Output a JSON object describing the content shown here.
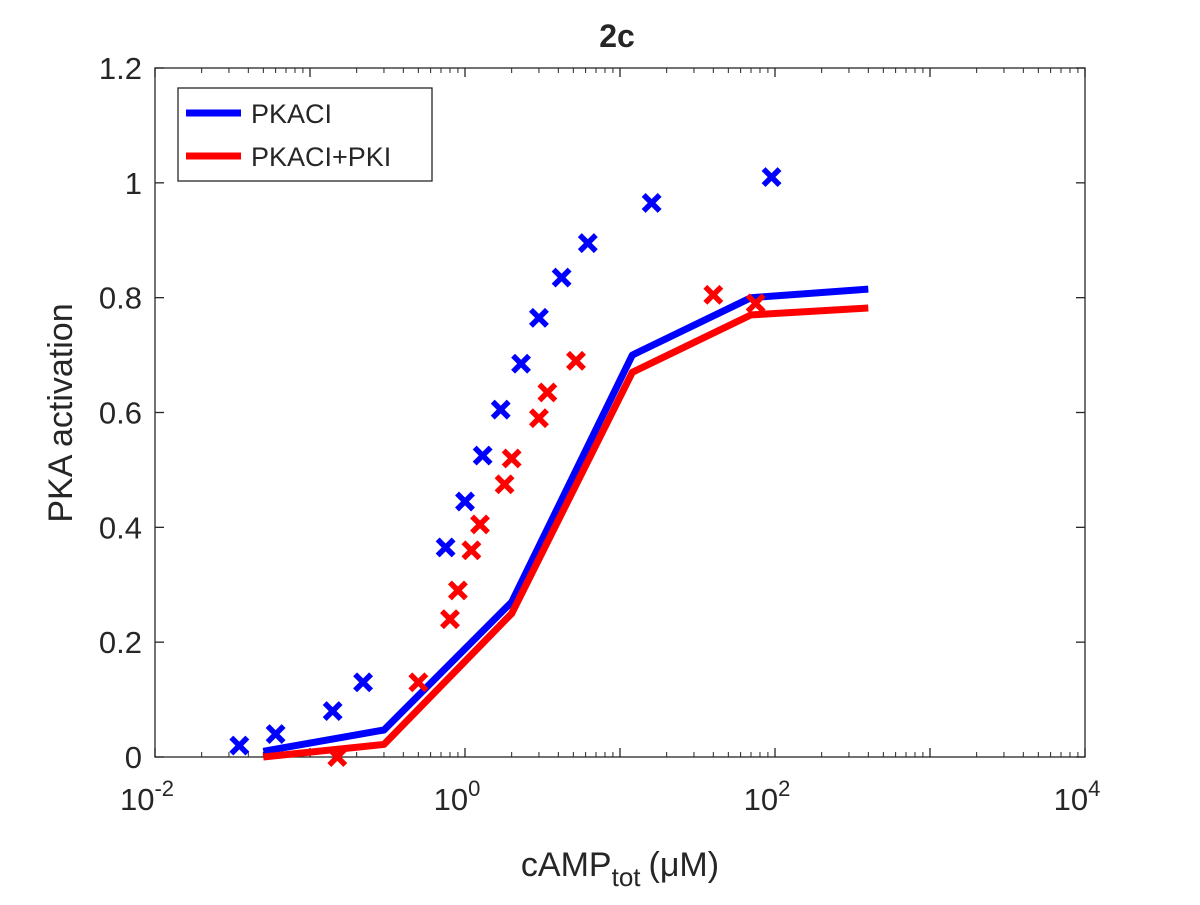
{
  "chart_data": {
    "type": "line",
    "title": "2c",
    "xlabel": {
      "main": "cAMP",
      "sub": "tot",
      "unit": "(μM)"
    },
    "ylabel": "PKA activation",
    "xscale": "log",
    "xlim": [
      0.01,
      10000
    ],
    "ylim": [
      0,
      1.2
    ],
    "x_ticks": [
      {
        "value": 0.01,
        "base": "10",
        "exp": "-2"
      },
      {
        "value": 1,
        "base": "10",
        "exp": "0"
      },
      {
        "value": 100,
        "base": "10",
        "exp": "2"
      },
      {
        "value": 10000,
        "base": "10",
        "exp": "4"
      }
    ],
    "y_ticks": [
      {
        "value": 0,
        "label": "0"
      },
      {
        "value": 0.2,
        "label": "0.2"
      },
      {
        "value": 0.4,
        "label": "0.4"
      },
      {
        "value": 0.6,
        "label": "0.6"
      },
      {
        "value": 0.8,
        "label": "0.8"
      },
      {
        "value": 1.0,
        "label": "1"
      },
      {
        "value": 1.2,
        "label": "1.2"
      }
    ],
    "grid": false,
    "legend_position": "top-left",
    "series": [
      {
        "name": "PKACI",
        "color": "#0000ff",
        "line": {
          "x": [
            0.05,
            0.3,
            2,
            12,
            70,
            400
          ],
          "y": [
            0.01,
            0.047,
            0.27,
            0.7,
            0.8,
            0.815
          ]
        },
        "markers": {
          "x": [
            0.035,
            0.06,
            0.14,
            0.22,
            0.75,
            1.0,
            1.3,
            1.7,
            2.3,
            3.0,
            4.2,
            6.2,
            16,
            95
          ],
          "y": [
            0.02,
            0.04,
            0.08,
            0.13,
            0.365,
            0.445,
            0.525,
            0.605,
            0.685,
            0.765,
            0.835,
            0.895,
            0.965,
            1.01
          ]
        }
      },
      {
        "name": "PKACI+PKI",
        "color": "#ff0000",
        "line": {
          "x": [
            0.05,
            0.3,
            2,
            12,
            70,
            400
          ],
          "y": [
            0.0,
            0.022,
            0.25,
            0.67,
            0.77,
            0.782
          ]
        },
        "markers": {
          "x": [
            0.15,
            0.5,
            0.8,
            0.9,
            1.1,
            1.25,
            1.8,
            2.0,
            3.0,
            3.4,
            5.2,
            40,
            75
          ],
          "y": [
            0.0,
            0.13,
            0.24,
            0.29,
            0.36,
            0.405,
            0.475,
            0.52,
            0.59,
            0.635,
            0.69,
            0.805,
            0.79
          ]
        }
      }
    ]
  }
}
